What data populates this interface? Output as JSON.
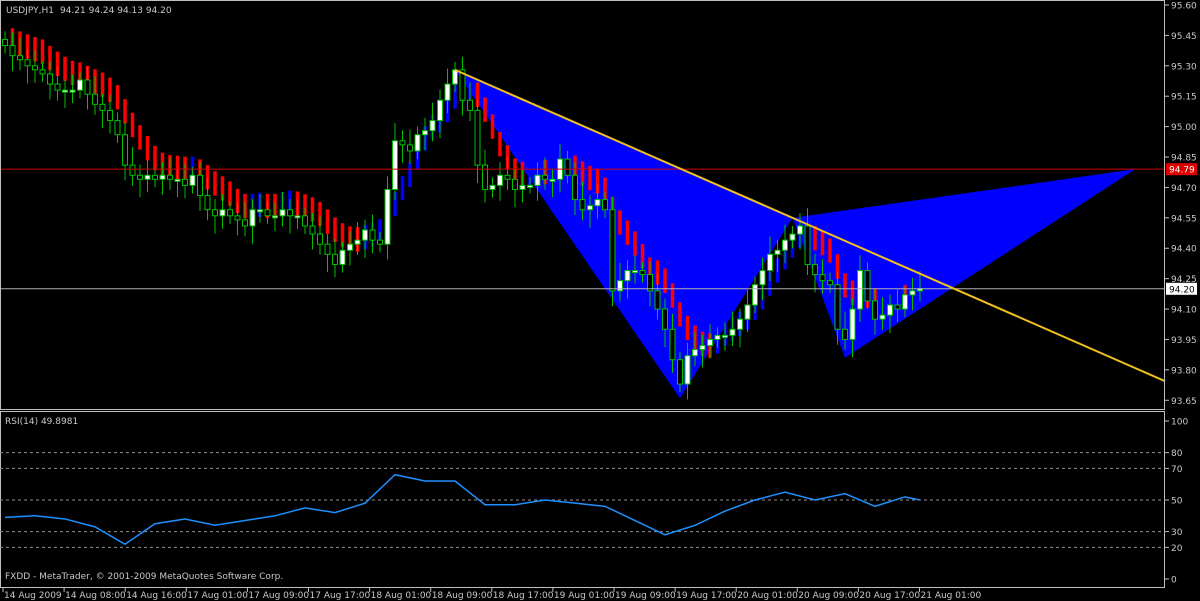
{
  "header": {
    "symbol": "USDJPY,H1",
    "ohlc": "94.21 94.24 94.13 94.20"
  },
  "rsi_label": "RSI(14) 49.8981",
  "footer": "FXDD - MetaTrader, © 2001-2009 MetaQuotes Software Corp.",
  "colors": {
    "bull": "#ffffff",
    "wick": "#00c000",
    "ma_down": "#ff0000",
    "ma_up": "#0000ff",
    "pattern": "#0000ff",
    "trendline": "#f0c020",
    "rsi": "#1e90ff",
    "level_line": "#d00000",
    "bid_line": "#b0b0b0"
  },
  "chart_data": [
    {
      "type": "candlestick",
      "title": "USDJPY,H1",
      "ylim": [
        93.6,
        95.62
      ],
      "y_ticks": [
        "95.60",
        "95.45",
        "95.30",
        "95.15",
        "95.00",
        "94.85",
        "94.70",
        "94.55",
        "94.40",
        "94.25",
        "94.10",
        "93.95",
        "93.80",
        "93.65"
      ],
      "x_ticks": [
        "14 Aug 2009",
        "14 Aug 08:00",
        "14 Aug 16:00",
        "17 Aug 01:00",
        "17 Aug 09:00",
        "17 Aug 17:00",
        "18 Aug 01:00",
        "18 Aug 09:00",
        "18 Aug 17:00",
        "19 Aug 01:00",
        "19 Aug 09:00",
        "19 Aug 17:00",
        "20 Aug 01:00",
        "20 Aug 09:00",
        "20 Aug 17:00",
        "21 Aug 01:00"
      ],
      "close": [
        95.4,
        95.35,
        95.33,
        95.3,
        95.28,
        95.26,
        95.21,
        95.18,
        95.18,
        95.18,
        95.23,
        95.16,
        95.11,
        95.08,
        95.03,
        94.96,
        94.81,
        94.76,
        94.74,
        94.76,
        94.74,
        94.76,
        94.74,
        94.74,
        94.71,
        94.76,
        94.66,
        94.59,
        94.56,
        94.59,
        94.56,
        94.54,
        94.51,
        94.59,
        94.59,
        94.56,
        94.56,
        94.59,
        94.56,
        94.56,
        94.51,
        94.47,
        94.42,
        94.37,
        94.32,
        94.39,
        94.42,
        94.44,
        94.49,
        94.44,
        94.42,
        94.69,
        94.93,
        94.91,
        94.88,
        94.96,
        94.98,
        95.03,
        95.13,
        95.21,
        95.28,
        95.13,
        95.08,
        94.81,
        94.69,
        94.71,
        94.76,
        94.74,
        94.69,
        94.71,
        94.71,
        94.76,
        94.74,
        94.74,
        94.84,
        94.76,
        94.64,
        94.59,
        94.61,
        94.64,
        94.59,
        94.19,
        94.24,
        94.29,
        94.29,
        94.27,
        94.19,
        94.1,
        94.0,
        93.85,
        93.73,
        93.87,
        93.9,
        93.92,
        93.95,
        93.97,
        93.97,
        94.0,
        94.05,
        94.12,
        94.22,
        94.29,
        94.37,
        94.39,
        94.44,
        94.47,
        94.51,
        94.32,
        94.27,
        94.24,
        94.22,
        94.0,
        93.95,
        94.1,
        94.29,
        94.14,
        94.05,
        94.07,
        94.12,
        94.1,
        94.17,
        94.19,
        94.2
      ],
      "horizontal_lines": [
        {
          "price": 94.79,
          "label": "94.79",
          "color": "#d00000"
        },
        {
          "price": 94.2,
          "label": "94.20",
          "color": "#b0b0b0"
        }
      ],
      "pattern_points": {
        "X": [
          60,
          95.28
        ],
        "A": [
          90,
          93.66
        ],
        "B": [
          105,
          94.55
        ],
        "C": [
          112,
          93.86
        ],
        "D": [
          150.7,
          94.79
        ]
      },
      "trendline": {
        "from": [
          60,
          95.28
        ],
        "through": [
          105,
          94.55
        ]
      }
    },
    {
      "type": "line",
      "title": "RSI(14) 49.8981",
      "ylim": [
        0,
        100
      ],
      "y_ticks": [
        "100",
        "80",
        "70",
        "50",
        "30",
        "20",
        "0"
      ],
      "levels": [
        80,
        70,
        50,
        30,
        20
      ],
      "series": [
        {
          "values": [
            39,
            40,
            38,
            33,
            22,
            35,
            38,
            34,
            37,
            40,
            45,
            42,
            48,
            66,
            62,
            62,
            47,
            47,
            50,
            48,
            46,
            37,
            28,
            34,
            43,
            50,
            55,
            50,
            54,
            46,
            52,
            50
          ]
        }
      ]
    }
  ]
}
